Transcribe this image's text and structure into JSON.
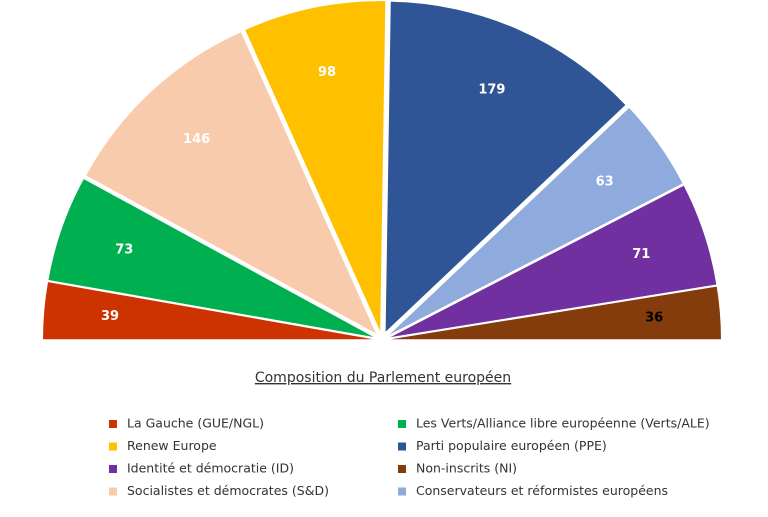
{
  "chart_data": {
    "type": "half-pie",
    "title": "Composition du Parlement européen",
    "categories": [
      "La Gauche (GUE/NGL)",
      "Les Verts/Alliance libre européenne (Verts/ALE)",
      "Socialistes et démocrates (S&D)",
      "Renew Europe",
      "Parti populaire européen (PPE)",
      "Conservateurs et réformistes européens",
      "Identité et démocratie (ID)",
      "Non-inscrits (NI)"
    ],
    "values": [
      39,
      73,
      146,
      98,
      179,
      63,
      71,
      36
    ],
    "colors": [
      "#cc3300",
      "#00b050",
      "#f8cbad",
      "#ffc000",
      "#2f5597",
      "#8faadc",
      "#7030a0",
      "#843c0c"
    ],
    "label_colors": [
      "#ffffff",
      "#ffffff",
      "#ffffff",
      "#ffffff",
      "#ffffff",
      "#ffffff",
      "#ffffff",
      "#000000"
    ]
  }
}
